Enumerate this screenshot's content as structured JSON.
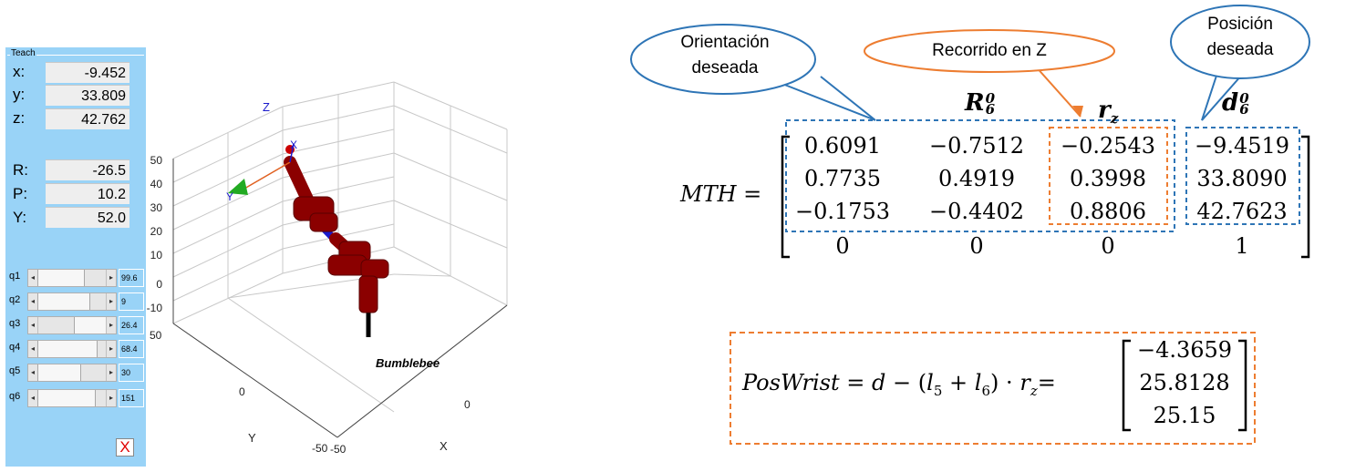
{
  "teach_panel": {
    "title": "Teach",
    "position": [
      {
        "label": "x:",
        "value": "-9.452"
      },
      {
        "label": "y:",
        "value": "33.809"
      },
      {
        "label": "z:",
        "value": "42.762"
      }
    ],
    "orientation": [
      {
        "label": "R:",
        "value": "-26.5"
      },
      {
        "label": "P:",
        "value": "10.2"
      },
      {
        "label": "Y:",
        "value": "52.0"
      }
    ],
    "joints": [
      {
        "label": "q1",
        "value": "99.6"
      },
      {
        "label": "q2",
        "value": "9"
      },
      {
        "label": "q3",
        "value": "26.4"
      },
      {
        "label": "q4",
        "value": "68.4"
      },
      {
        "label": "q5",
        "value": "30"
      },
      {
        "label": "q6",
        "value": "151"
      }
    ],
    "close_label": "X"
  },
  "plot3d": {
    "z_axis_label": "Z",
    "y_axis_label": "Y",
    "x_axis_label": "X",
    "z_ticks": [
      "50",
      "40",
      "30",
      "20",
      "10",
      "0",
      "-10"
    ],
    "y_ticks": [
      "50",
      "0",
      "-50"
    ],
    "x_ticks": [
      "-50",
      "0"
    ],
    "robot_name": "Bumblebee",
    "frame_labels": [
      "X",
      "Y"
    ],
    "colors": {
      "link": "#8b0000",
      "joint_axis": "#0000cc",
      "base": "#000000"
    }
  },
  "callouts": {
    "orientation": {
      "line1": "Orientación",
      "line2": "deseada"
    },
    "travel_z": {
      "text": "Recorrido en Z"
    },
    "position": {
      "line1": "Posición",
      "line2": "deseada"
    }
  },
  "mth": {
    "label": "MTH =",
    "header_R": "R",
    "header_R_sup": "0",
    "header_R_sub": "6",
    "header_r": "r",
    "header_r_sub": "z",
    "header_d": "d",
    "header_d_sup": "0",
    "header_d_sub": "6",
    "rows": [
      [
        "0.6091",
        "−0.7512",
        "−0.2543",
        "−9.4519"
      ],
      [
        "0.7735",
        "0.4919",
        "0.3998",
        "33.8090"
      ],
      [
        "−0.1753",
        "−0.4402",
        "0.8806",
        "42.7623"
      ],
      [
        "0",
        "0",
        "0",
        "1"
      ]
    ]
  },
  "poswrist": {
    "lhs": "PosWrist",
    "eq": "=",
    "d": "d",
    "minus": "−",
    "open": "(",
    "l": "l",
    "sub5": "5",
    "plus": "+",
    "sub6": "6",
    "close": ")",
    "dot": "·",
    "r": "r",
    "subz": "z",
    "eq2": "=",
    "values": [
      "−4.3659",
      "25.8128",
      "25.15"
    ]
  },
  "colors": {
    "blue_dash": "#2e75b6",
    "orange_dash": "#ed7d31",
    "panel_bg": "#99d3f7"
  }
}
